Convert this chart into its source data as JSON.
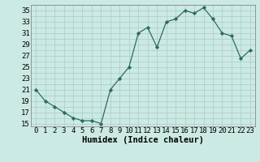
{
  "x": [
    0,
    1,
    2,
    3,
    4,
    5,
    6,
    7,
    8,
    9,
    10,
    11,
    12,
    13,
    14,
    15,
    16,
    17,
    18,
    19,
    20,
    21,
    22,
    23
  ],
  "y": [
    21,
    19,
    18,
    17,
    16,
    15.5,
    15.5,
    15,
    21,
    23,
    25,
    31,
    32,
    28.5,
    33,
    33.5,
    35,
    34.5,
    35.5,
    33.5,
    31,
    30.5,
    26.5,
    28
  ],
  "line_color": "#2e6b5e",
  "marker": "D",
  "marker_size": 2.2,
  "bg_color": "#cceae4",
  "grid_color": "#b0cfc9",
  "xlabel": "Humidex (Indice chaleur)",
  "xlim": [
    -0.5,
    23.5
  ],
  "ylim": [
    14.5,
    36
  ],
  "yticks": [
    15,
    17,
    19,
    21,
    23,
    25,
    27,
    29,
    31,
    33,
    35
  ],
  "ygrid_ticks": [
    15,
    16,
    17,
    18,
    19,
    20,
    21,
    22,
    23,
    24,
    25,
    26,
    27,
    28,
    29,
    30,
    31,
    32,
    33,
    34,
    35
  ],
  "xticks": [
    0,
    1,
    2,
    3,
    4,
    5,
    6,
    7,
    8,
    9,
    10,
    11,
    12,
    13,
    14,
    15,
    16,
    17,
    18,
    19,
    20,
    21,
    22,
    23
  ],
  "tick_fontsize": 6.5,
  "xlabel_fontsize": 7.5,
  "linewidth": 0.9
}
